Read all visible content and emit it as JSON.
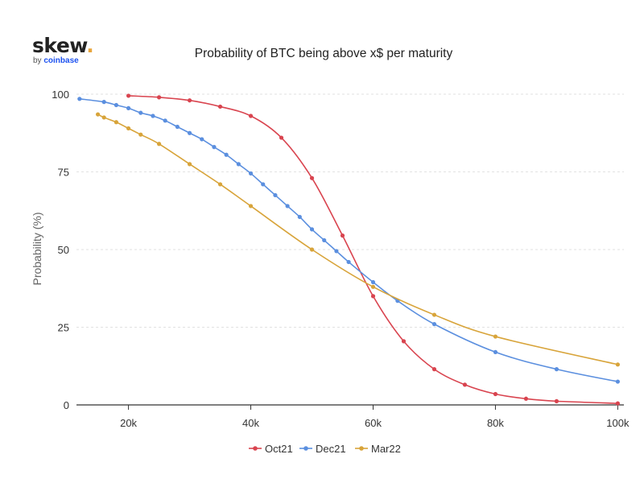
{
  "brand": {
    "name": "skew",
    "dot": ".",
    "by": "by",
    "company": "coinbase"
  },
  "colors": {
    "Oct21": "#d9444f",
    "Dec21": "#5b8fdf",
    "Mar22": "#d8a43a"
  },
  "chart_data": {
    "type": "line",
    "title": "Probability of BTC being above x$ per maturity",
    "xlabel": "",
    "ylabel": "Probability (%)",
    "xlim": [
      11500,
      101000
    ],
    "ylim": [
      0,
      100
    ],
    "xticks": [
      20000,
      40000,
      60000,
      80000,
      100000
    ],
    "xtick_labels": [
      "20k",
      "40k",
      "60k",
      "80k",
      "100k"
    ],
    "yticks": [
      0,
      25,
      50,
      75,
      100
    ],
    "ytick_labels": [
      "0",
      "25",
      "50",
      "75",
      "100"
    ],
    "grid": "horizontal dashed",
    "legend": "bottom-center",
    "series": [
      {
        "name": "Oct21",
        "color": "#d9444f",
        "x": [
          20000,
          25000,
          30000,
          35000,
          40000,
          45000,
          50000,
          55000,
          60000,
          65000,
          70000,
          75000,
          80000,
          85000,
          90000,
          100000
        ],
        "y": [
          99.5,
          99.0,
          98.0,
          96.0,
          93.0,
          86.0,
          73.0,
          54.5,
          35.0,
          20.5,
          11.5,
          6.5,
          3.5,
          2.0,
          1.2,
          0.5
        ]
      },
      {
        "name": "Dec21",
        "color": "#5b8fdf",
        "x": [
          12000,
          16000,
          18000,
          20000,
          22000,
          24000,
          26000,
          28000,
          30000,
          32000,
          34000,
          36000,
          38000,
          40000,
          42000,
          44000,
          46000,
          48000,
          50000,
          52000,
          54000,
          56000,
          60000,
          64000,
          70000,
          80000,
          90000,
          100000
        ],
        "y": [
          98.5,
          97.5,
          96.5,
          95.5,
          94.0,
          93.0,
          91.5,
          89.5,
          87.5,
          85.5,
          83.0,
          80.5,
          77.5,
          74.5,
          71.0,
          67.5,
          64.0,
          60.5,
          56.5,
          53.0,
          49.5,
          46.0,
          39.5,
          33.5,
          26.0,
          17.0,
          11.5,
          7.5
        ]
      },
      {
        "name": "Mar22",
        "color": "#d8a43a",
        "x": [
          15000,
          16000,
          18000,
          20000,
          22000,
          25000,
          30000,
          35000,
          40000,
          50000,
          60000,
          70000,
          80000,
          100000
        ],
        "y": [
          93.5,
          92.5,
          91.0,
          89.0,
          87.0,
          84.0,
          77.5,
          71.0,
          64.0,
          50.0,
          38.0,
          29.0,
          22.0,
          13.0
        ]
      }
    ]
  }
}
